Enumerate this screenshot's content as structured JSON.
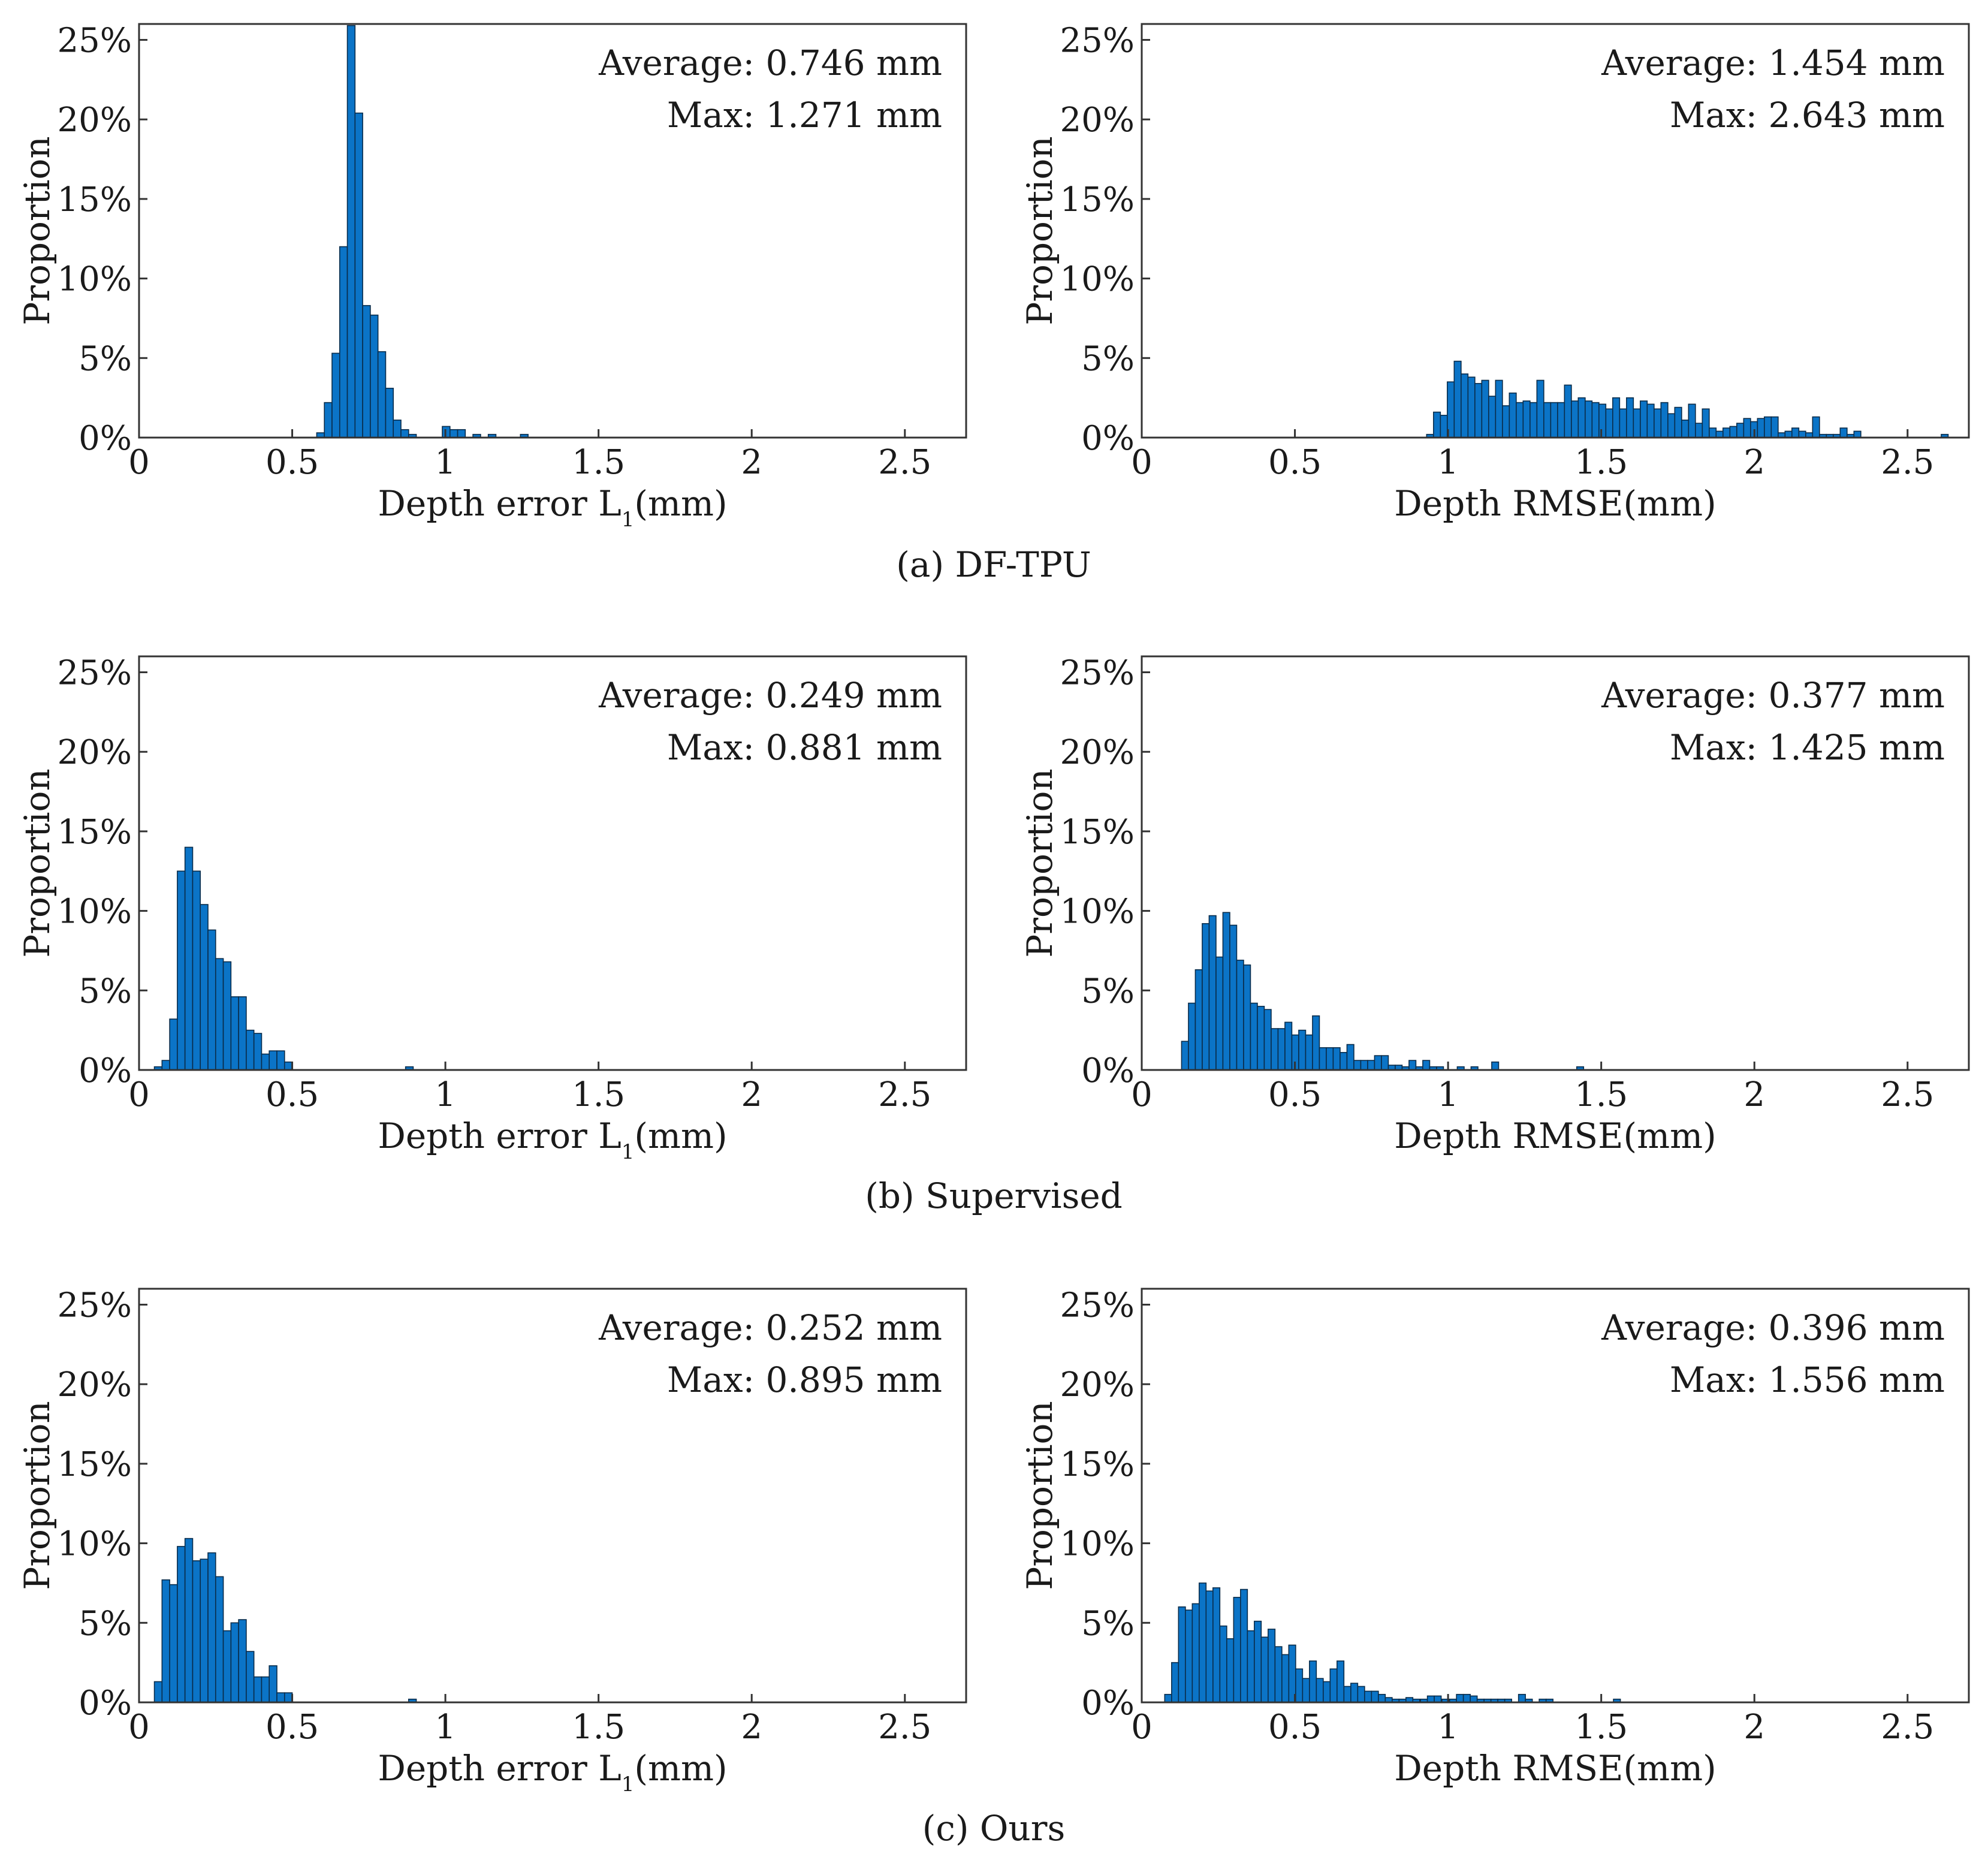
{
  "colors": {
    "bar_fill": "#0b74c7",
    "bar_edge": "#0a2c4a",
    "axes": "#333333",
    "text": "#1a1a1a"
  },
  "captions": [
    "(a) DF-TPU",
    "(b) Supervised",
    "(c) Ours"
  ],
  "chart_data": [
    {
      "type": "bar",
      "row": 0,
      "col": 0,
      "xlabel": "Depth error L",
      "xlabel_sub": "1",
      "xlabel_unit": "(mm)",
      "ylabel": "Proportion",
      "stats": {
        "average": "Average: 0.746 mm",
        "max": "Max: 1.271 mm"
      },
      "xlim": [
        0,
        2.7
      ],
      "ylim": [
        0,
        0.26
      ],
      "xticks": [
        0,
        0.5,
        1,
        1.5,
        2,
        2.5
      ],
      "xtick_labels": [
        "0",
        "0.5",
        "1",
        "1.5",
        "2",
        "2.5"
      ],
      "yticks": [
        0,
        0.05,
        0.1,
        0.15,
        0.2,
        0.25
      ],
      "ytick_labels": [
        "0%",
        "5%",
        "10%",
        "15%",
        "20%",
        "25%"
      ],
      "bin_width": 0.025,
      "bins": [
        [
          0.58,
          0.003
        ],
        [
          0.605,
          0.022
        ],
        [
          0.63,
          0.053
        ],
        [
          0.655,
          0.12
        ],
        [
          0.68,
          0.259
        ],
        [
          0.705,
          0.204
        ],
        [
          0.73,
          0.083
        ],
        [
          0.755,
          0.077
        ],
        [
          0.78,
          0.054
        ],
        [
          0.805,
          0.031
        ],
        [
          0.83,
          0.011
        ],
        [
          0.855,
          0.005
        ],
        [
          0.88,
          0.002
        ],
        [
          0.99,
          0.007
        ],
        [
          1.015,
          0.005
        ],
        [
          1.04,
          0.005
        ],
        [
          1.09,
          0.002
        ],
        [
          1.14,
          0.002
        ],
        [
          1.245,
          0.002
        ]
      ]
    },
    {
      "type": "bar",
      "row": 0,
      "col": 1,
      "xlabel": "Depth RMSE(mm)",
      "xlabel_sub": "",
      "xlabel_unit": "",
      "ylabel": "Proportion",
      "stats": {
        "average": "Average: 1.454 mm",
        "max": "Max: 2.643 mm"
      },
      "xlim": [
        0,
        2.7
      ],
      "ylim": [
        0,
        0.26
      ],
      "xticks": [
        0,
        0.5,
        1,
        1.5,
        2,
        2.5
      ],
      "xtick_labels": [
        "0",
        "0.5",
        "1",
        "1.5",
        "2",
        "2.5"
      ],
      "yticks": [
        0,
        0.05,
        0.1,
        0.15,
        0.2,
        0.25
      ],
      "ytick_labels": [
        "0%",
        "5%",
        "10%",
        "15%",
        "20%",
        "25%"
      ],
      "bin_width": 0.0225,
      "bins": [
        [
          0.93,
          0.002
        ],
        [
          0.9525,
          0.016
        ],
        [
          0.975,
          0.014
        ],
        [
          0.9975,
          0.035
        ],
        [
          1.02,
          0.048
        ],
        [
          1.0425,
          0.04
        ],
        [
          1.065,
          0.038
        ],
        [
          1.0875,
          0.034
        ],
        [
          1.11,
          0.036
        ],
        [
          1.1325,
          0.026
        ],
        [
          1.155,
          0.036
        ],
        [
          1.1775,
          0.02
        ],
        [
          1.2,
          0.028
        ],
        [
          1.2225,
          0.022
        ],
        [
          1.245,
          0.023
        ],
        [
          1.2675,
          0.022
        ],
        [
          1.29,
          0.036
        ],
        [
          1.3125,
          0.022
        ],
        [
          1.335,
          0.022
        ],
        [
          1.3575,
          0.022
        ],
        [
          1.38,
          0.033
        ],
        [
          1.4025,
          0.023
        ],
        [
          1.425,
          0.025
        ],
        [
          1.4475,
          0.023
        ],
        [
          1.47,
          0.022
        ],
        [
          1.4925,
          0.021
        ],
        [
          1.515,
          0.018
        ],
        [
          1.5375,
          0.025
        ],
        [
          1.56,
          0.018
        ],
        [
          1.5825,
          0.025
        ],
        [
          1.605,
          0.018
        ],
        [
          1.6275,
          0.023
        ],
        [
          1.65,
          0.021
        ],
        [
          1.6725,
          0.018
        ],
        [
          1.695,
          0.022
        ],
        [
          1.7175,
          0.015
        ],
        [
          1.74,
          0.019
        ],
        [
          1.7625,
          0.011
        ],
        [
          1.785,
          0.021
        ],
        [
          1.8075,
          0.009
        ],
        [
          1.83,
          0.018
        ],
        [
          1.8525,
          0.006
        ],
        [
          1.875,
          0.004
        ],
        [
          1.8975,
          0.006
        ],
        [
          1.92,
          0.007
        ],
        [
          1.9425,
          0.009
        ],
        [
          1.965,
          0.012
        ],
        [
          1.9875,
          0.01
        ],
        [
          2.01,
          0.012
        ],
        [
          2.0325,
          0.013
        ],
        [
          2.055,
          0.013
        ],
        [
          2.0775,
          0.003
        ],
        [
          2.1,
          0.004
        ],
        [
          2.1225,
          0.006
        ],
        [
          2.145,
          0.004
        ],
        [
          2.1675,
          0.003
        ],
        [
          2.19,
          0.013
        ],
        [
          2.2125,
          0.002
        ],
        [
          2.235,
          0.002
        ],
        [
          2.2575,
          0.002
        ],
        [
          2.28,
          0.006
        ],
        [
          2.3025,
          0.002
        ],
        [
          2.325,
          0.004
        ],
        [
          2.61,
          0.002
        ]
      ]
    },
    {
      "type": "bar",
      "row": 1,
      "col": 0,
      "xlabel": "Depth error L",
      "xlabel_sub": "1",
      "xlabel_unit": "(mm)",
      "ylabel": "Proportion",
      "stats": {
        "average": "Average: 0.249 mm",
        "max": "Max: 0.881 mm"
      },
      "xlim": [
        0,
        2.7
      ],
      "ylim": [
        0,
        0.26
      ],
      "xticks": [
        0,
        0.5,
        1,
        1.5,
        2,
        2.5
      ],
      "xtick_labels": [
        "0",
        "0.5",
        "1",
        "1.5",
        "2",
        "2.5"
      ],
      "yticks": [
        0,
        0.05,
        0.1,
        0.15,
        0.2,
        0.25
      ],
      "ytick_labels": [
        "0%",
        "5%",
        "10%",
        "15%",
        "20%",
        "25%"
      ],
      "bin_width": 0.025,
      "bins": [
        [
          0.05,
          0.002
        ],
        [
          0.075,
          0.006
        ],
        [
          0.1,
          0.032
        ],
        [
          0.125,
          0.125
        ],
        [
          0.15,
          0.14
        ],
        [
          0.175,
          0.125
        ],
        [
          0.2,
          0.104
        ],
        [
          0.225,
          0.088
        ],
        [
          0.25,
          0.07
        ],
        [
          0.275,
          0.068
        ],
        [
          0.3,
          0.046
        ],
        [
          0.325,
          0.046
        ],
        [
          0.35,
          0.025
        ],
        [
          0.375,
          0.023
        ],
        [
          0.4,
          0.01
        ],
        [
          0.425,
          0.012
        ],
        [
          0.45,
          0.012
        ],
        [
          0.475,
          0.005
        ],
        [
          0.87,
          0.002
        ]
      ]
    },
    {
      "type": "bar",
      "row": 1,
      "col": 1,
      "xlabel": "Depth RMSE(mm)",
      "xlabel_sub": "",
      "xlabel_unit": "",
      "ylabel": "Proportion",
      "stats": {
        "average": "Average: 0.377 mm",
        "max": "Max: 1.425 mm"
      },
      "xlim": [
        0,
        2.7
      ],
      "ylim": [
        0,
        0.26
      ],
      "xticks": [
        0,
        0.5,
        1,
        1.5,
        2,
        2.5
      ],
      "xtick_labels": [
        "0",
        "0.5",
        "1",
        "1.5",
        "2",
        "2.5"
      ],
      "yticks": [
        0,
        0.05,
        0.1,
        0.15,
        0.2,
        0.25
      ],
      "ytick_labels": [
        "0%",
        "5%",
        "10%",
        "15%",
        "20%",
        "25%"
      ],
      "bin_width": 0.0225,
      "bins": [
        [
          0.13,
          0.018
        ],
        [
          0.1525,
          0.042
        ],
        [
          0.175,
          0.063
        ],
        [
          0.1975,
          0.092
        ],
        [
          0.22,
          0.097
        ],
        [
          0.2425,
          0.071
        ],
        [
          0.265,
          0.099
        ],
        [
          0.2875,
          0.091
        ],
        [
          0.31,
          0.069
        ],
        [
          0.3325,
          0.066
        ],
        [
          0.355,
          0.042
        ],
        [
          0.3775,
          0.04
        ],
        [
          0.4,
          0.038
        ],
        [
          0.4225,
          0.026
        ],
        [
          0.445,
          0.026
        ],
        [
          0.4675,
          0.03
        ],
        [
          0.49,
          0.022
        ],
        [
          0.5125,
          0.025
        ],
        [
          0.535,
          0.022
        ],
        [
          0.5575,
          0.034
        ],
        [
          0.58,
          0.014
        ],
        [
          0.6025,
          0.014
        ],
        [
          0.625,
          0.014
        ],
        [
          0.6475,
          0.011
        ],
        [
          0.67,
          0.016
        ],
        [
          0.6925,
          0.006
        ],
        [
          0.715,
          0.006
        ],
        [
          0.7375,
          0.006
        ],
        [
          0.76,
          0.009
        ],
        [
          0.7825,
          0.009
        ],
        [
          0.805,
          0.003
        ],
        [
          0.8275,
          0.003
        ],
        [
          0.85,
          0.002
        ],
        [
          0.8725,
          0.006
        ],
        [
          0.895,
          0.002
        ],
        [
          0.9175,
          0.006
        ],
        [
          0.94,
          0.002
        ],
        [
          0.9625,
          0.002
        ],
        [
          1.03,
          0.002
        ],
        [
          1.075,
          0.002
        ],
        [
          1.1425,
          0.005
        ],
        [
          1.42,
          0.002
        ]
      ]
    },
    {
      "type": "bar",
      "row": 2,
      "col": 0,
      "xlabel": "Depth error L",
      "xlabel_sub": "1",
      "xlabel_unit": "(mm)",
      "ylabel": "Proportion",
      "stats": {
        "average": "Average: 0.252 mm",
        "max": "Max: 0.895 mm"
      },
      "xlim": [
        0,
        2.7
      ],
      "ylim": [
        0,
        0.26
      ],
      "xticks": [
        0,
        0.5,
        1,
        1.5,
        2,
        2.5
      ],
      "xtick_labels": [
        "0",
        "0.5",
        "1",
        "1.5",
        "2",
        "2.5"
      ],
      "yticks": [
        0,
        0.05,
        0.1,
        0.15,
        0.2,
        0.25
      ],
      "ytick_labels": [
        "0%",
        "5%",
        "10%",
        "15%",
        "20%",
        "25%"
      ],
      "bin_width": 0.025,
      "bins": [
        [
          0.05,
          0.013
        ],
        [
          0.075,
          0.077
        ],
        [
          0.1,
          0.074
        ],
        [
          0.125,
          0.098
        ],
        [
          0.15,
          0.103
        ],
        [
          0.175,
          0.089
        ],
        [
          0.2,
          0.09
        ],
        [
          0.225,
          0.094
        ],
        [
          0.25,
          0.079
        ],
        [
          0.275,
          0.045
        ],
        [
          0.3,
          0.05
        ],
        [
          0.325,
          0.052
        ],
        [
          0.35,
          0.032
        ],
        [
          0.375,
          0.016
        ],
        [
          0.4,
          0.016
        ],
        [
          0.425,
          0.023
        ],
        [
          0.45,
          0.006
        ],
        [
          0.475,
          0.006
        ],
        [
          0.88,
          0.002
        ]
      ]
    },
    {
      "type": "bar",
      "row": 2,
      "col": 1,
      "xlabel": "Depth RMSE(mm)",
      "xlabel_sub": "",
      "xlabel_unit": "",
      "ylabel": "Proportion",
      "stats": {
        "average": "Average: 0.396 mm",
        "max": "Max: 1.556 mm"
      },
      "xlim": [
        0,
        2.7
      ],
      "ylim": [
        0,
        0.26
      ],
      "xticks": [
        0,
        0.5,
        1,
        1.5,
        2,
        2.5
      ],
      "xtick_labels": [
        "0",
        "0.5",
        "1",
        "1.5",
        "2",
        "2.5"
      ],
      "yticks": [
        0,
        0.05,
        0.1,
        0.15,
        0.2,
        0.25
      ],
      "ytick_labels": [
        "0%",
        "5%",
        "10%",
        "15%",
        "20%",
        "25%"
      ],
      "bin_width": 0.0225,
      "bins": [
        [
          0.075,
          0.005
        ],
        [
          0.0975,
          0.025
        ],
        [
          0.12,
          0.06
        ],
        [
          0.1425,
          0.058
        ],
        [
          0.165,
          0.062
        ],
        [
          0.1875,
          0.075
        ],
        [
          0.21,
          0.07
        ],
        [
          0.2325,
          0.072
        ],
        [
          0.255,
          0.048
        ],
        [
          0.2775,
          0.04
        ],
        [
          0.3,
          0.066
        ],
        [
          0.3225,
          0.071
        ],
        [
          0.345,
          0.045
        ],
        [
          0.3675,
          0.051
        ],
        [
          0.39,
          0.041
        ],
        [
          0.4125,
          0.046
        ],
        [
          0.435,
          0.035
        ],
        [
          0.4575,
          0.03
        ],
        [
          0.48,
          0.036
        ],
        [
          0.5025,
          0.021
        ],
        [
          0.525,
          0.015
        ],
        [
          0.5475,
          0.026
        ],
        [
          0.57,
          0.015
        ],
        [
          0.5925,
          0.013
        ],
        [
          0.615,
          0.021
        ],
        [
          0.6375,
          0.026
        ],
        [
          0.66,
          0.01
        ],
        [
          0.6825,
          0.012
        ],
        [
          0.705,
          0.01
        ],
        [
          0.7275,
          0.007
        ],
        [
          0.75,
          0.007
        ],
        [
          0.7725,
          0.005
        ],
        [
          0.795,
          0.003
        ],
        [
          0.8175,
          0.002
        ],
        [
          0.84,
          0.002
        ],
        [
          0.8625,
          0.003
        ],
        [
          0.885,
          0.002
        ],
        [
          0.91,
          0.002
        ],
        [
          0.9325,
          0.004
        ],
        [
          0.955,
          0.004
        ],
        [
          0.98,
          0.002
        ],
        [
          1.005,
          0.002
        ],
        [
          1.0275,
          0.005
        ],
        [
          1.05,
          0.005
        ],
        [
          1.0725,
          0.004
        ],
        [
          1.095,
          0.002
        ],
        [
          1.1175,
          0.002
        ],
        [
          1.14,
          0.002
        ],
        [
          1.1625,
          0.002
        ],
        [
          1.185,
          0.002
        ],
        [
          1.23,
          0.005
        ],
        [
          1.2525,
          0.002
        ],
        [
          1.2975,
          0.002
        ],
        [
          1.32,
          0.002
        ],
        [
          1.54,
          0.002
        ]
      ]
    }
  ]
}
